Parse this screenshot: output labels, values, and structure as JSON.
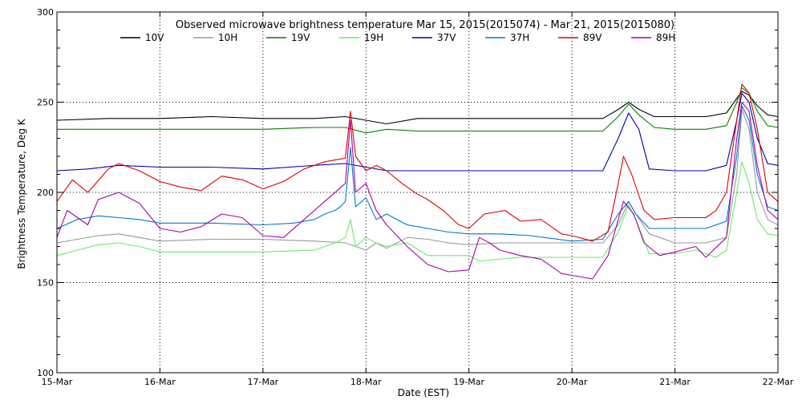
{
  "chart_data": {
    "type": "line",
    "title": "Observed microwave brightness temperature Mar 15, 2015(2015074) - Mar 21, 2015(2015080)",
    "xlabel": "Date (EST)",
    "ylabel": "Brightness Temperature, Deg K",
    "ylim": [
      100,
      300
    ],
    "xlim": [
      0,
      7
    ],
    "x_ticks": [
      {
        "x": 0,
        "label": "15-Mar"
      },
      {
        "x": 1,
        "label": "16-Mar"
      },
      {
        "x": 2,
        "label": "17-Mar"
      },
      {
        "x": 3,
        "label": "18-Mar"
      },
      {
        "x": 4,
        "label": "19-Mar"
      },
      {
        "x": 5,
        "label": "20-Mar"
      },
      {
        "x": 6,
        "label": "21-Mar"
      },
      {
        "x": 7,
        "label": "22-Mar"
      }
    ],
    "y_ticks": [
      100,
      150,
      200,
      250,
      300
    ],
    "grid": true,
    "legend_position": "top",
    "series": [
      {
        "name": "10V",
        "color": "#000000",
        "points": [
          [
            0,
            240
          ],
          [
            0.5,
            241
          ],
          [
            1,
            241
          ],
          [
            1.5,
            242
          ],
          [
            2,
            241
          ],
          [
            2.5,
            241
          ],
          [
            2.8,
            242
          ],
          [
            3,
            240
          ],
          [
            3.2,
            238
          ],
          [
            3.5,
            241
          ],
          [
            4,
            241
          ],
          [
            4.5,
            241
          ],
          [
            5,
            241
          ],
          [
            5.3,
            241
          ],
          [
            5.45,
            246
          ],
          [
            5.55,
            250
          ],
          [
            5.65,
            246
          ],
          [
            5.8,
            242
          ],
          [
            6,
            242
          ],
          [
            6.3,
            242
          ],
          [
            6.5,
            244
          ],
          [
            6.6,
            252
          ],
          [
            6.65,
            256
          ],
          [
            6.72,
            254
          ],
          [
            6.8,
            248
          ],
          [
            6.9,
            243
          ],
          [
            7,
            242
          ]
        ]
      },
      {
        "name": "10H",
        "color": "#999999",
        "points": [
          [
            0,
            172
          ],
          [
            0.2,
            174
          ],
          [
            0.4,
            176
          ],
          [
            0.6,
            177
          ],
          [
            0.8,
            175
          ],
          [
            1,
            173
          ],
          [
            1.5,
            174
          ],
          [
            2,
            174
          ],
          [
            2.5,
            173
          ],
          [
            2.8,
            172
          ],
          [
            3,
            168
          ],
          [
            3.1,
            172
          ],
          [
            3.2,
            169
          ],
          [
            3.4,
            175
          ],
          [
            3.6,
            174
          ],
          [
            3.8,
            172
          ],
          [
            4,
            171
          ],
          [
            4.3,
            172
          ],
          [
            4.6,
            172
          ],
          [
            5,
            172
          ],
          [
            5.3,
            172
          ],
          [
            5.45,
            182
          ],
          [
            5.55,
            195
          ],
          [
            5.62,
            188
          ],
          [
            5.75,
            177
          ],
          [
            6,
            172
          ],
          [
            6.3,
            172
          ],
          [
            6.5,
            175
          ],
          [
            6.6,
            210
          ],
          [
            6.65,
            246
          ],
          [
            6.72,
            235
          ],
          [
            6.8,
            200
          ],
          [
            6.9,
            185
          ],
          [
            7,
            182
          ]
        ]
      },
      {
        "name": "19V",
        "color": "#008000",
        "points": [
          [
            0,
            235
          ],
          [
            0.5,
            235
          ],
          [
            1,
            235
          ],
          [
            1.5,
            235
          ],
          [
            2,
            235
          ],
          [
            2.5,
            236
          ],
          [
            2.8,
            236
          ],
          [
            3,
            233
          ],
          [
            3.2,
            235
          ],
          [
            3.5,
            234
          ],
          [
            4,
            234
          ],
          [
            4.5,
            234
          ],
          [
            5,
            234
          ],
          [
            5.3,
            234
          ],
          [
            5.45,
            242
          ],
          [
            5.55,
            249
          ],
          [
            5.65,
            243
          ],
          [
            5.8,
            236
          ],
          [
            6,
            235
          ],
          [
            6.3,
            235
          ],
          [
            6.5,
            237
          ],
          [
            6.6,
            250
          ],
          [
            6.65,
            258
          ],
          [
            6.72,
            255
          ],
          [
            6.8,
            245
          ],
          [
            6.9,
            237
          ],
          [
            7,
            236
          ]
        ]
      },
      {
        "name": "19H",
        "color": "#66ee66",
        "points": [
          [
            0,
            165
          ],
          [
            0.2,
            168
          ],
          [
            0.4,
            171
          ],
          [
            0.6,
            172
          ],
          [
            0.8,
            170
          ],
          [
            1,
            167
          ],
          [
            1.5,
            167
          ],
          [
            2,
            167
          ],
          [
            2.5,
            168
          ],
          [
            2.7,
            172
          ],
          [
            2.8,
            175
          ],
          [
            2.85,
            185
          ],
          [
            2.9,
            170
          ],
          [
            3,
            175
          ],
          [
            3.1,
            172
          ],
          [
            3.2,
            170
          ],
          [
            3.4,
            172
          ],
          [
            3.6,
            165
          ],
          [
            3.8,
            165
          ],
          [
            4,
            165
          ],
          [
            4.1,
            162
          ],
          [
            4.5,
            164
          ],
          [
            5,
            164
          ],
          [
            5.3,
            164
          ],
          [
            5.45,
            178
          ],
          [
            5.55,
            193
          ],
          [
            5.62,
            185
          ],
          [
            5.75,
            166
          ],
          [
            6,
            166
          ],
          [
            6.2,
            168
          ],
          [
            6.4,
            164
          ],
          [
            6.5,
            168
          ],
          [
            6.6,
            200
          ],
          [
            6.65,
            217
          ],
          [
            6.72,
            205
          ],
          [
            6.8,
            185
          ],
          [
            6.9,
            177
          ],
          [
            7,
            176
          ]
        ]
      },
      {
        "name": "37V",
        "color": "#0000aa",
        "points": [
          [
            0,
            212
          ],
          [
            0.3,
            213
          ],
          [
            0.6,
            215
          ],
          [
            1,
            214
          ],
          [
            1.5,
            214
          ],
          [
            2,
            213
          ],
          [
            2.5,
            215
          ],
          [
            2.8,
            216
          ],
          [
            3,
            214
          ],
          [
            3.2,
            212
          ],
          [
            3.5,
            212
          ],
          [
            4,
            212
          ],
          [
            4.5,
            212
          ],
          [
            5,
            212
          ],
          [
            5.3,
            212
          ],
          [
            5.45,
            230
          ],
          [
            5.55,
            244
          ],
          [
            5.65,
            235
          ],
          [
            5.75,
            213
          ],
          [
            6,
            212
          ],
          [
            6.3,
            212
          ],
          [
            6.5,
            215
          ],
          [
            6.6,
            240
          ],
          [
            6.65,
            255
          ],
          [
            6.72,
            250
          ],
          [
            6.8,
            230
          ],
          [
            6.9,
            216
          ],
          [
            7,
            215
          ]
        ]
      },
      {
        "name": "37H",
        "color": "#0077cc",
        "points": [
          [
            0,
            180
          ],
          [
            0.2,
            185
          ],
          [
            0.4,
            187
          ],
          [
            0.6,
            186
          ],
          [
            0.8,
            185
          ],
          [
            1,
            183
          ],
          [
            1.5,
            183
          ],
          [
            2,
            182
          ],
          [
            2.3,
            183
          ],
          [
            2.5,
            185
          ],
          [
            2.6,
            188
          ],
          [
            2.7,
            190
          ],
          [
            2.75,
            192
          ],
          [
            2.8,
            195
          ],
          [
            2.85,
            225
          ],
          [
            2.9,
            192
          ],
          [
            3,
            197
          ],
          [
            3.1,
            185
          ],
          [
            3.2,
            188
          ],
          [
            3.4,
            182
          ],
          [
            3.6,
            180
          ],
          [
            3.8,
            178
          ],
          [
            4,
            177
          ],
          [
            4.3,
            177
          ],
          [
            4.6,
            176
          ],
          [
            5,
            173
          ],
          [
            5.3,
            174
          ],
          [
            5.45,
            188
          ],
          [
            5.55,
            195
          ],
          [
            5.62,
            188
          ],
          [
            5.75,
            180
          ],
          [
            6,
            180
          ],
          [
            6.3,
            180
          ],
          [
            6.5,
            184
          ],
          [
            6.6,
            220
          ],
          [
            6.65,
            248
          ],
          [
            6.72,
            240
          ],
          [
            6.8,
            210
          ],
          [
            6.9,
            192
          ],
          [
            7,
            190
          ]
        ]
      },
      {
        "name": "89V",
        "color": "#dd0000",
        "points": [
          [
            0,
            195
          ],
          [
            0.15,
            207
          ],
          [
            0.3,
            200
          ],
          [
            0.5,
            213
          ],
          [
            0.6,
            216
          ],
          [
            0.8,
            212
          ],
          [
            1,
            206
          ],
          [
            1.2,
            203
          ],
          [
            1.4,
            201
          ],
          [
            1.6,
            209
          ],
          [
            1.8,
            207
          ],
          [
            2,
            202
          ],
          [
            2.2,
            206
          ],
          [
            2.4,
            213
          ],
          [
            2.6,
            217
          ],
          [
            2.8,
            219
          ],
          [
            2.85,
            245
          ],
          [
            2.9,
            220
          ],
          [
            3,
            212
          ],
          [
            3.1,
            215
          ],
          [
            3.2,
            212
          ],
          [
            3.35,
            205
          ],
          [
            3.5,
            199
          ],
          [
            3.6,
            196
          ],
          [
            3.75,
            190
          ],
          [
            3.9,
            182
          ],
          [
            4,
            180
          ],
          [
            4.15,
            188
          ],
          [
            4.35,
            190
          ],
          [
            4.5,
            184
          ],
          [
            4.7,
            185
          ],
          [
            4.9,
            177
          ],
          [
            5,
            176
          ],
          [
            5.2,
            173
          ],
          [
            5.35,
            178
          ],
          [
            5.45,
            205
          ],
          [
            5.5,
            220
          ],
          [
            5.58,
            210
          ],
          [
            5.7,
            190
          ],
          [
            5.8,
            185
          ],
          [
            6,
            186
          ],
          [
            6.3,
            186
          ],
          [
            6.4,
            190
          ],
          [
            6.5,
            200
          ],
          [
            6.6,
            240
          ],
          [
            6.65,
            260
          ],
          [
            6.72,
            255
          ],
          [
            6.8,
            235
          ],
          [
            6.9,
            200
          ],
          [
            7,
            195
          ]
        ]
      },
      {
        "name": "89H",
        "color": "#aa00aa",
        "points": [
          [
            0,
            175
          ],
          [
            0.1,
            190
          ],
          [
            0.2,
            186
          ],
          [
            0.3,
            182
          ],
          [
            0.4,
            196
          ],
          [
            0.6,
            200
          ],
          [
            0.8,
            194
          ],
          [
            1,
            180
          ],
          [
            1.2,
            178
          ],
          [
            1.4,
            181
          ],
          [
            1.6,
            188
          ],
          [
            1.8,
            186
          ],
          [
            2,
            176
          ],
          [
            2.2,
            175
          ],
          [
            2.4,
            185
          ],
          [
            2.6,
            195
          ],
          [
            2.8,
            205
          ],
          [
            2.85,
            240
          ],
          [
            2.9,
            200
          ],
          [
            3,
            205
          ],
          [
            3.1,
            190
          ],
          [
            3.2,
            182
          ],
          [
            3.4,
            170
          ],
          [
            3.6,
            160
          ],
          [
            3.8,
            156
          ],
          [
            4,
            157
          ],
          [
            4.1,
            175
          ],
          [
            4.2,
            172
          ],
          [
            4.3,
            168
          ],
          [
            4.5,
            165
          ],
          [
            4.7,
            163
          ],
          [
            4.9,
            155
          ],
          [
            5,
            154
          ],
          [
            5.2,
            152
          ],
          [
            5.35,
            165
          ],
          [
            5.45,
            185
          ],
          [
            5.5,
            195
          ],
          [
            5.6,
            188
          ],
          [
            5.7,
            172
          ],
          [
            5.85,
            165
          ],
          [
            6,
            167
          ],
          [
            6.2,
            170
          ],
          [
            6.3,
            164
          ],
          [
            6.5,
            175
          ],
          [
            6.6,
            230
          ],
          [
            6.65,
            250
          ],
          [
            6.72,
            245
          ],
          [
            6.8,
            215
          ],
          [
            6.9,
            190
          ],
          [
            7,
            185
          ]
        ]
      }
    ]
  }
}
